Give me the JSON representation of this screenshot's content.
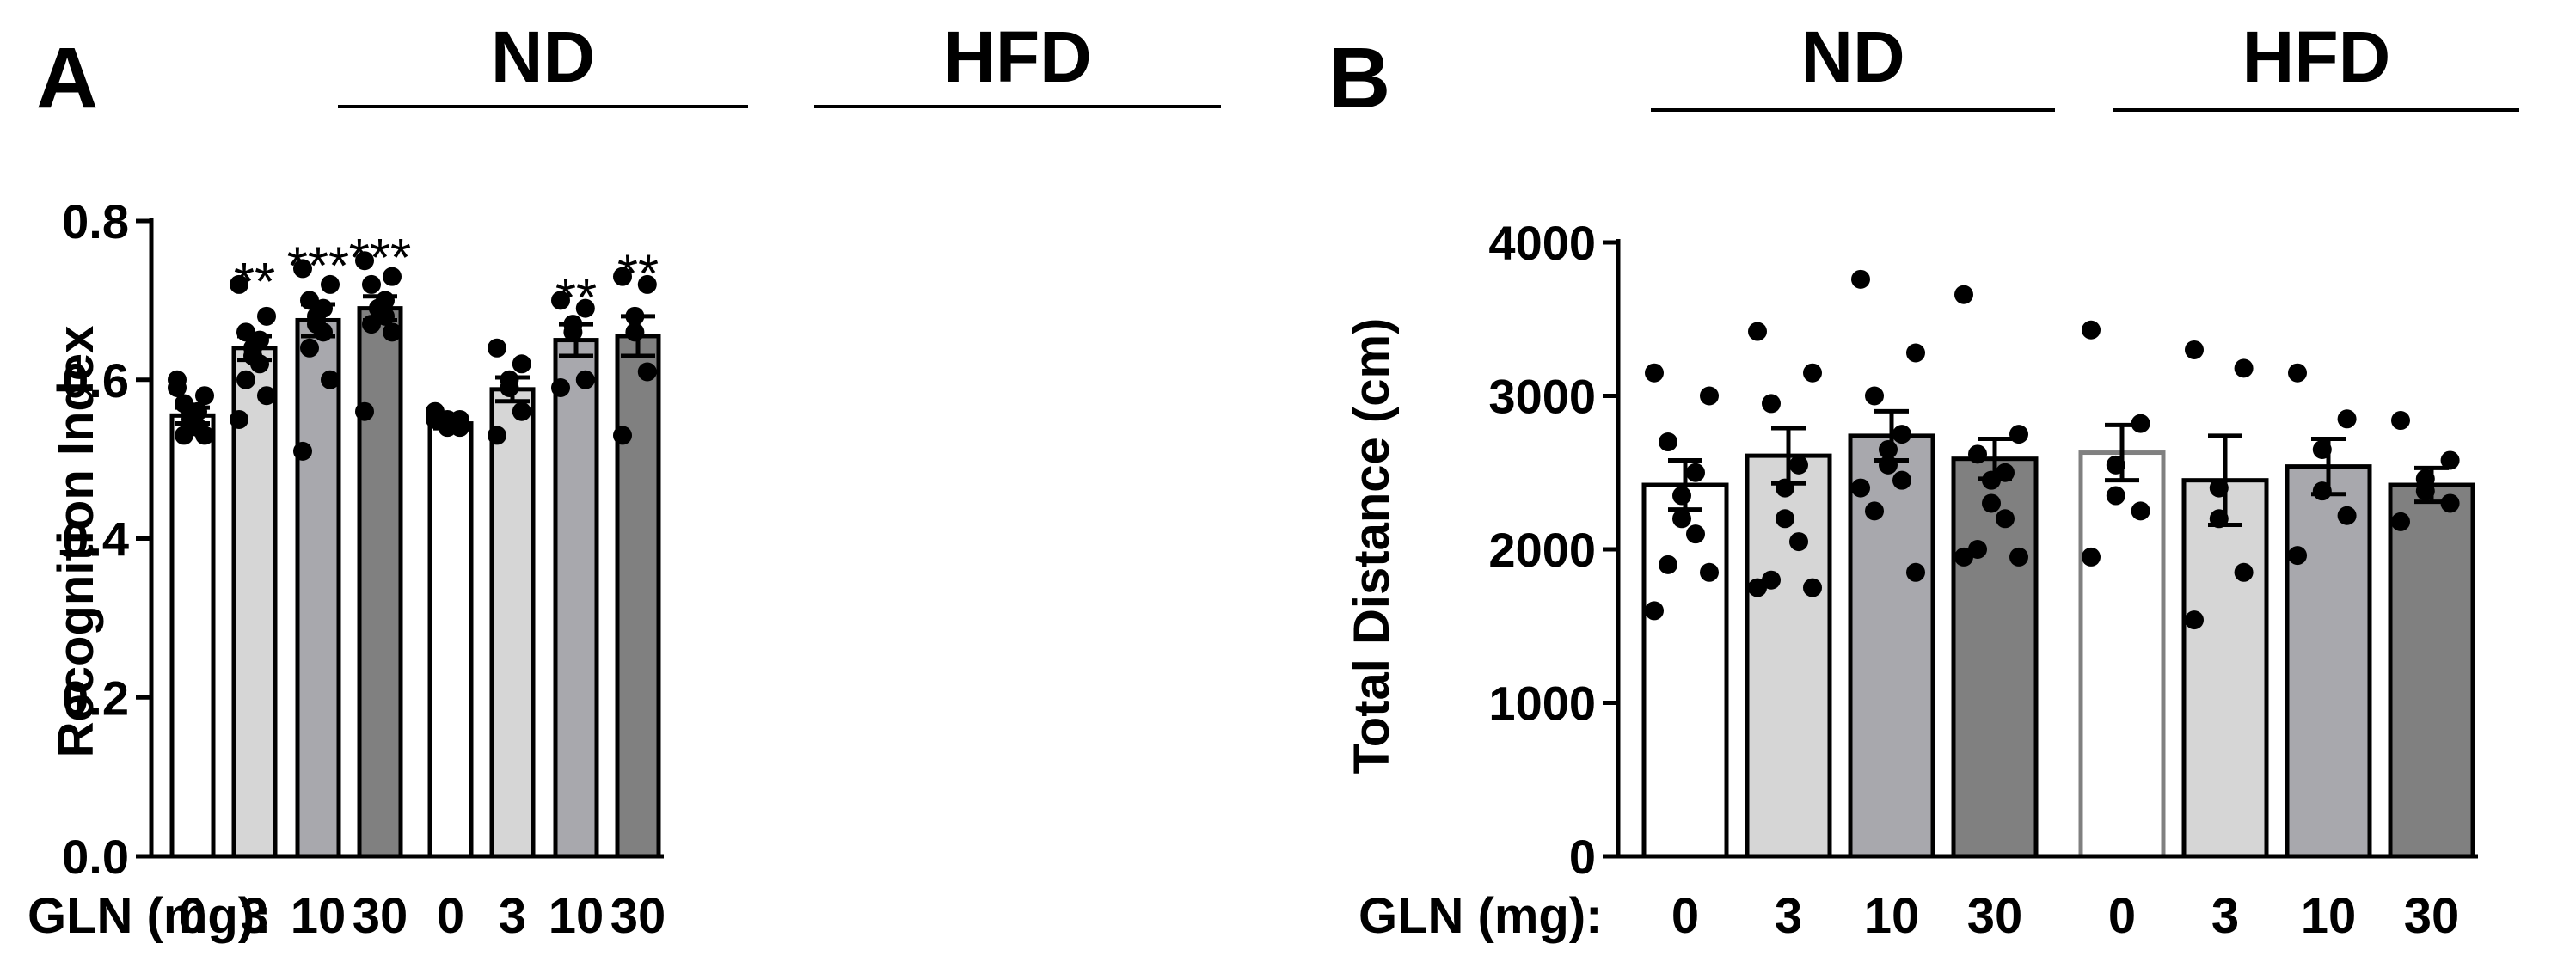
{
  "chart_data": [
    {
      "panel": "A",
      "type": "bar",
      "groups": [
        "ND",
        "HFD"
      ],
      "x_prefix": "GLN (mg):",
      "categories": [
        "0",
        "3",
        "10",
        "30",
        "0",
        "3",
        "10",
        "30"
      ],
      "ylabel": "Recognition Index",
      "ylim": [
        0.0,
        0.8
      ],
      "yticks": [
        "0.0",
        "0.2",
        "0.4",
        "0.6",
        "0.8"
      ],
      "ytick_values": [
        0.0,
        0.2,
        0.4,
        0.6,
        0.8
      ],
      "values": [
        0.555,
        0.64,
        0.675,
        0.69,
        0.545,
        0.588,
        0.65,
        0.655
      ],
      "sem": [
        0.01,
        0.015,
        0.02,
        0.015,
        0.006,
        0.015,
        0.02,
        0.025
      ],
      "significance": [
        "",
        "**",
        "***",
        "***",
        "",
        "",
        "**",
        "**"
      ],
      "bar_colors": [
        "#ffffff",
        "#d6d6d6",
        "#a8a8ad",
        "#808080",
        "#ffffff",
        "#d6d6d6",
        "#a8a8ad",
        "#808080"
      ],
      "points": [
        [
          0.59,
          0.58,
          0.57,
          0.56,
          0.56,
          0.55,
          0.54,
          0.53,
          0.53,
          0.6
        ],
        [
          0.72,
          0.68,
          0.66,
          0.65,
          0.64,
          0.63,
          0.62,
          0.6,
          0.58,
          0.55
        ],
        [
          0.74,
          0.72,
          0.7,
          0.69,
          0.68,
          0.67,
          0.66,
          0.64,
          0.6,
          0.51
        ],
        [
          0.75,
          0.73,
          0.72,
          0.7,
          0.69,
          0.69,
          0.68,
          0.67,
          0.66,
          0.56
        ],
        [
          0.56,
          0.55,
          0.55,
          0.54,
          0.54,
          0.55
        ],
        [
          0.64,
          0.62,
          0.6,
          0.59,
          0.56,
          0.53
        ],
        [
          0.7,
          0.69,
          0.67,
          0.66,
          0.6,
          0.59
        ],
        [
          0.73,
          0.72,
          0.68,
          0.66,
          0.61,
          0.53
        ]
      ]
    },
    {
      "panel": "B",
      "type": "bar",
      "groups": [
        "ND",
        "HFD"
      ],
      "x_prefix": "GLN (mg):",
      "categories": [
        "0",
        "3",
        "10",
        "30",
        "0",
        "3",
        "10",
        "30"
      ],
      "ylabel": "Total Distance (cm)",
      "ylim": [
        0,
        4000
      ],
      "yticks": [
        "0",
        "1000",
        "2000",
        "3000",
        "4000"
      ],
      "ytick_values": [
        0,
        1000,
        2000,
        3000,
        4000
      ],
      "values": [
        2420,
        2610,
        2740,
        2590,
        2630,
        2450,
        2540,
        2420
      ],
      "sem": [
        160,
        180,
        160,
        130,
        180,
        290,
        180,
        110
      ],
      "significance": [
        "",
        "",
        "",
        "",
        "",
        "",
        "",
        ""
      ],
      "bar_colors": [
        "#ffffff",
        "#d6d6d6",
        "#a8a8ad",
        "#808080",
        "#ffffff",
        "#d6d6d6",
        "#a8a8ad",
        "#808080"
      ],
      "bar_edge_colors": [
        "#000000",
        "#000000",
        "#000000",
        "#000000",
        "#808080",
        "#000000",
        "#000000",
        "#000000"
      ],
      "points": [
        [
          3150,
          3000,
          2700,
          2500,
          2350,
          2200,
          2100,
          1900,
          1850,
          1600
        ],
        [
          3420,
          3150,
          2950,
          2550,
          2400,
          2200,
          2050,
          1800,
          1750,
          1750
        ],
        [
          3760,
          3280,
          3000,
          2750,
          2650,
          2550,
          2450,
          2250,
          1850,
          2400
        ],
        [
          3660,
          2750,
          2620,
          2500,
          2450,
          2300,
          2200,
          2000,
          1950,
          1950
        ],
        [
          3430,
          2820,
          2550,
          2350,
          2250,
          1950
        ],
        [
          3300,
          3180,
          2400,
          2200,
          1850,
          1540
        ],
        [
          3150,
          2850,
          2650,
          2380,
          2220,
          1960
        ],
        [
          2840,
          2580,
          2460,
          2380,
          2300,
          2180
        ]
      ]
    }
  ]
}
